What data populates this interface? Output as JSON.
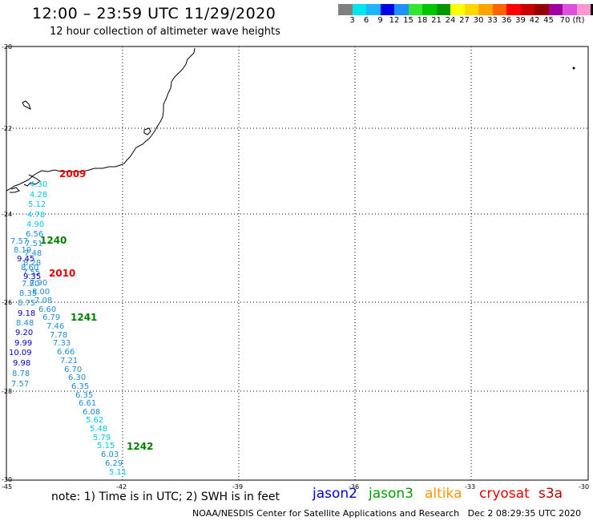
{
  "title": "12:00 – 23:59 UTC 11/29/2020",
  "subtitle": "12 hour collection of altimeter wave heights",
  "legend": {
    "colors": [
      "#808080",
      "#00e5ee",
      "#1eb4ff",
      "#0000e6",
      "#1e90ff",
      "#32e632",
      "#00c800",
      "#009600",
      "#ffff00",
      "#ffd700",
      "#ffa500",
      "#ff6400",
      "#ff0000",
      "#c80000",
      "#960000",
      "#a000a0",
      "#dc50dc",
      "#ff96d2",
      "#000000"
    ],
    "labels": [
      "3",
      "6",
      "9",
      "12",
      "15",
      "18",
      "21",
      "24",
      "27",
      "30",
      "33",
      "36",
      "39",
      "42",
      "45",
      "70",
      "(ft)"
    ]
  },
  "axes": {
    "lat_labels": [
      "-20",
      "-22",
      "-24",
      "-26",
      "-28",
      "-30"
    ],
    "lon_labels": [
      "-45",
      "-42",
      "-39",
      "-36",
      "-33",
      "-30"
    ]
  },
  "passes": [
    {
      "label": "2009",
      "color": "#e60000"
    },
    {
      "label": "1240",
      "color": "#008000"
    },
    {
      "label": "2010",
      "color": "#e60000"
    },
    {
      "label": "1241",
      "color": "#008000"
    },
    {
      "label": "1242",
      "color": "#008000"
    }
  ],
  "wave_heights": [
    {
      "v": "4.30",
      "c": "#00c8e6"
    },
    {
      "v": "4.28",
      "c": "#00c8e6"
    },
    {
      "v": "5.12",
      "c": "#00c8e6"
    },
    {
      "v": "4.78",
      "c": "#00c8e6"
    },
    {
      "v": "4.90",
      "c": "#00c8e6"
    },
    {
      "v": "6.56",
      "c": "#1e8cd2"
    },
    {
      "v": "7.57",
      "c": "#1e8cd2"
    },
    {
      "v": "7.51",
      "c": "#1e8cd2"
    },
    {
      "v": "8.19",
      "c": "#1e8cd2"
    },
    {
      "v": "7.48",
      "c": "#1e8cd2"
    },
    {
      "v": "9.45",
      "c": "#0000c8"
    },
    {
      "v": "8.28",
      "c": "#1e8cd2"
    },
    {
      "v": "8.60",
      "c": "#1e8cd2"
    },
    {
      "v": "7.55",
      "c": "#1e8cd2"
    },
    {
      "v": "9.35",
      "c": "#0000c8"
    },
    {
      "v": "7.90",
      "c": "#1e8cd2"
    },
    {
      "v": "7.80",
      "c": "#1e8cd2"
    },
    {
      "v": "8.00",
      "c": "#1e8cd2"
    },
    {
      "v": "8.35",
      "c": "#1e8cd2"
    },
    {
      "v": "7.08",
      "c": "#1e8cd2"
    },
    {
      "v": "8.75",
      "c": "#1e8cd2"
    },
    {
      "v": "6.60",
      "c": "#1e8cd2"
    },
    {
      "v": "9.18",
      "c": "#0000c8"
    },
    {
      "v": "6.79",
      "c": "#1e8cd2"
    },
    {
      "v": "8.48",
      "c": "#1e8cd2"
    },
    {
      "v": "7.46",
      "c": "#1e8cd2"
    },
    {
      "v": "9.20",
      "c": "#0000c8"
    },
    {
      "v": "7.78",
      "c": "#1e8cd2"
    },
    {
      "v": "9.99",
      "c": "#0000c8"
    },
    {
      "v": "7.33",
      "c": "#1e8cd2"
    },
    {
      "v": "10.09",
      "c": "#0000c8"
    },
    {
      "v": "6.66",
      "c": "#1e8cd2"
    },
    {
      "v": "7.21",
      "c": "#1e8cd2"
    },
    {
      "v": "9.98",
      "c": "#0000c8"
    },
    {
      "v": "6.70",
      "c": "#1e8cd2"
    },
    {
      "v": "8.78",
      "c": "#1e8cd2"
    },
    {
      "v": "6.30",
      "c": "#1e8cd2"
    },
    {
      "v": "7.57",
      "c": "#1e8cd2"
    },
    {
      "v": "6.35",
      "c": "#1e8cd2"
    },
    {
      "v": "6.35",
      "c": "#1e8cd2"
    },
    {
      "v": "6.61",
      "c": "#1e8cd2"
    },
    {
      "v": "6.08",
      "c": "#1e8cd2"
    },
    {
      "v": "5.62",
      "c": "#00c8e6"
    },
    {
      "v": "5.48",
      "c": "#00c8e6"
    },
    {
      "v": "5.79",
      "c": "#00c8e6"
    },
    {
      "v": "5.15",
      "c": "#00c8e6"
    },
    {
      "v": "6.03",
      "c": "#1e8cd2"
    },
    {
      "v": "6.29",
      "c": "#1e8cd2"
    },
    {
      "v": "5.11",
      "c": "#00c8e6"
    }
  ],
  "note": "note: 1) Time is in UTC; 2) SWH is in feet",
  "satellites": [
    {
      "name": "jason2",
      "color": "#0000dc"
    },
    {
      "name": "jason3",
      "color": "#00a000"
    },
    {
      "name": "altika",
      "color": "#ff9600"
    },
    {
      "name": "cryosat",
      "color": "#e60000"
    },
    {
      "name": "s3a",
      "color": "#b40000"
    }
  ],
  "credit": "NOAA/NESDIS Center for Satellite Applications and Research",
  "timestamp": "Dec  2 08:29:35 UTC 2020"
}
